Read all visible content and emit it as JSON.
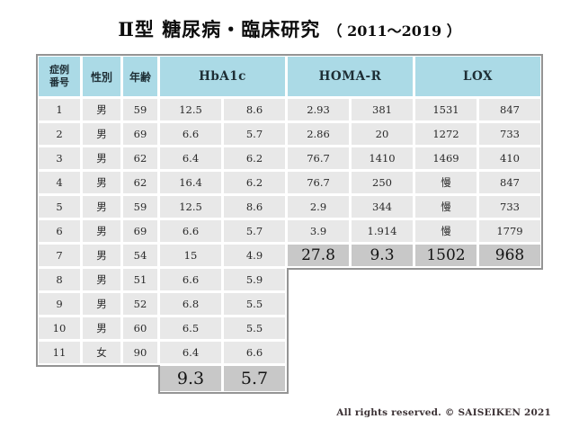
{
  "title": {
    "main": "Ⅱ型 糖尿病・臨床研究",
    "years": "（ 2011～2019 ）"
  },
  "table": {
    "header": {
      "case": "症例\n番号",
      "gender": "性別",
      "age": "年齢",
      "hba1c": "HbA1c",
      "homa": "HOMA-R",
      "lox": "LOX"
    },
    "rows": [
      [
        "1",
        "男",
        "59",
        "12.5",
        "8.6",
        "2.93",
        "381",
        "1531",
        "847"
      ],
      [
        "2",
        "男",
        "69",
        "6.6",
        "5.7",
        "2.86",
        "20",
        "1272",
        "733"
      ],
      [
        "3",
        "男",
        "62",
        "6.4",
        "6.2",
        "76.7",
        "1410",
        "1469",
        "410"
      ],
      [
        "4",
        "男",
        "62",
        "16.4",
        "6.2",
        "76.7",
        "250",
        "慢",
        "847"
      ],
      [
        "5",
        "男",
        "59",
        "12.5",
        "8.6",
        "2.9",
        "344",
        "慢",
        "733"
      ],
      [
        "6",
        "男",
        "69",
        "6.6",
        "5.7",
        "3.9",
        "1.914",
        "慢",
        "1779"
      ],
      [
        "7",
        "男",
        "54",
        "15",
        "4.9",
        "27.8",
        "9.3",
        "1502",
        "968"
      ],
      [
        "8",
        "男",
        "51",
        "6.6",
        "5.9"
      ],
      [
        "9",
        "男",
        "52",
        "6.8",
        "5.5"
      ],
      [
        "10",
        "男",
        "60",
        "6.5",
        "5.5"
      ],
      [
        "11",
        "女",
        "90",
        "6.4",
        "6.6"
      ]
    ],
    "summary": {
      "hba1c_pre": "9.3",
      "hba1c_post": "5.7"
    }
  },
  "footer": {
    "copyright": "All rights reserved. © SAISEIKEN  2021"
  },
  "colors": {
    "header_bg": "#abdae6",
    "cell_bg": "#e8e8e8",
    "highlight_bg": "#c8c8c8",
    "border": "#949494",
    "page_bg": "#ffffff"
  },
  "chart_data": {
    "type": "table",
    "title": "Ⅱ型 糖尿病・臨床研究（ 2011～2019 ）",
    "column_groups": [
      {
        "label": "症例番号",
        "span": 1
      },
      {
        "label": "性別",
        "span": 1
      },
      {
        "label": "年齢",
        "span": 1
      },
      {
        "label": "HbA1c",
        "span": 2
      },
      {
        "label": "HOMA-R",
        "span": 2
      },
      {
        "label": "LOX",
        "span": 2
      }
    ],
    "rows": [
      [
        "1",
        "男",
        "59",
        "12.5",
        "8.6",
        "2.93",
        "381",
        "1531",
        "847"
      ],
      [
        "2",
        "男",
        "69",
        "6.6",
        "5.7",
        "2.86",
        "20",
        "1272",
        "733"
      ],
      [
        "3",
        "男",
        "62",
        "6.4",
        "6.2",
        "76.7",
        "1410",
        "1469",
        "410"
      ],
      [
        "4",
        "男",
        "62",
        "16.4",
        "6.2",
        "76.7",
        "250",
        "慢",
        "847"
      ],
      [
        "5",
        "男",
        "59",
        "12.5",
        "8.6",
        "2.9",
        "344",
        "慢",
        "733"
      ],
      [
        "6",
        "男",
        "69",
        "6.6",
        "5.7",
        "3.9",
        "1.914",
        "慢",
        "1779"
      ],
      [
        "7",
        "男",
        "54",
        "15",
        "4.9",
        "27.8",
        "9.3",
        "1502",
        "968"
      ],
      [
        "8",
        "男",
        "51",
        "6.6",
        "5.9",
        "",
        "",
        "",
        ""
      ],
      [
        "9",
        "男",
        "52",
        "6.8",
        "5.5",
        "",
        "",
        "",
        ""
      ],
      [
        "10",
        "男",
        "60",
        "6.5",
        "5.5",
        "",
        "",
        "",
        ""
      ],
      [
        "11",
        "女",
        "90",
        "6.4",
        "6.6",
        "",
        "",
        "",
        ""
      ]
    ],
    "summary_row": [
      "",
      "",
      "",
      "9.3",
      "5.7",
      "",
      "",
      "",
      ""
    ],
    "highlighted_cells": "row 7 HOMA-R and LOX values (27.8, 9.3, 1502, 968) and summary HbA1c values (9.3, 5.7) shown larger on darker gray"
  }
}
